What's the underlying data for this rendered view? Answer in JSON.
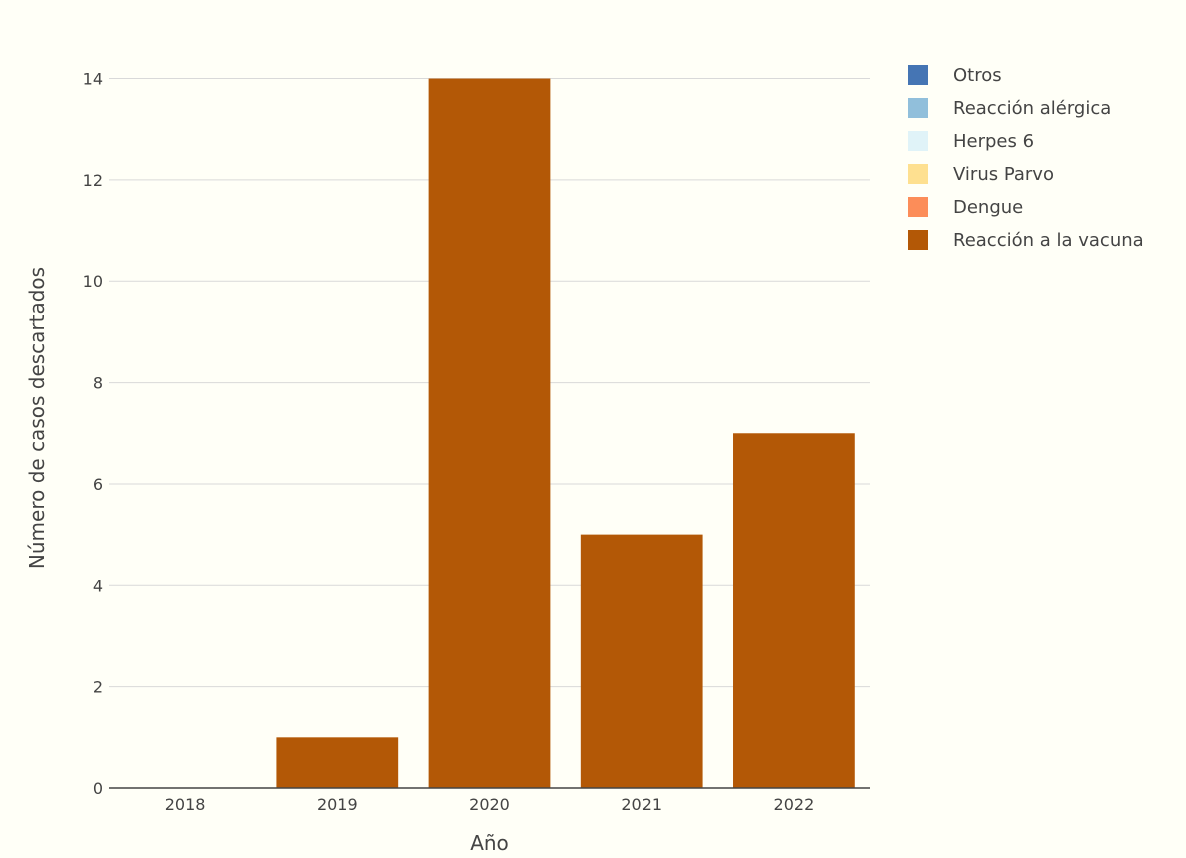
{
  "chart_data": {
    "type": "bar",
    "barmode": "stack",
    "categories": [
      "2018",
      "2019",
      "2020",
      "2021",
      "2022"
    ],
    "series": [
      {
        "name": "Otros",
        "color": "#4575b4",
        "values": [
          0,
          0,
          0,
          0,
          0
        ]
      },
      {
        "name": "Reacción alérgica",
        "color": "#91bfdb",
        "values": [
          0,
          0,
          0,
          0,
          0
        ]
      },
      {
        "name": "Herpes 6",
        "color": "#e0f3f8",
        "values": [
          0,
          0,
          0,
          0,
          0
        ]
      },
      {
        "name": "Virus Parvo",
        "color": "#fee090",
        "values": [
          0,
          0,
          0,
          0,
          0
        ]
      },
      {
        "name": "Dengue",
        "color": "#fc8d59",
        "values": [
          0,
          0,
          0,
          0,
          0
        ]
      },
      {
        "name": "Reacción a la vacuna",
        "color": "#b35806",
        "values": [
          0,
          1,
          14,
          5,
          7
        ]
      }
    ],
    "xlabel": "Año",
    "ylabel": "Número de casos descartados",
    "ylim": [
      0,
      14.8
    ],
    "yticks": [
      0,
      2,
      4,
      6,
      8,
      10,
      12,
      14
    ],
    "grid": true,
    "legend_position": "top-right",
    "background_color": "#fffff7",
    "grid_color": "#d9d9d9",
    "axis_line_color": "#444444",
    "text_color": "#444444"
  }
}
